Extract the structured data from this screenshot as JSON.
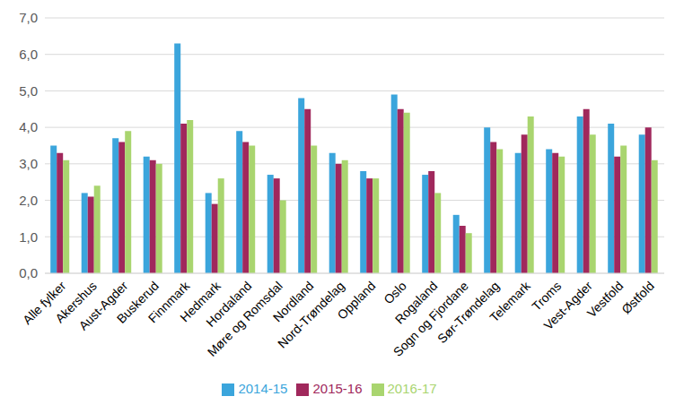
{
  "chart_data": {
    "type": "bar",
    "categories": [
      "Alle fylker",
      "Akershus",
      "Aust-Agder",
      "Buskerud",
      "Finnmark",
      "Hedmark",
      "Hordaland",
      "Møre og Romsdal",
      "Nordland",
      "Nord-Trøndelag",
      "Oppland",
      "Oslo",
      "Rogaland",
      "Sogn og Fjordane",
      "Sør-Trøndelag",
      "Telemark",
      "Troms",
      "Vest-Agder",
      "Vestfold",
      "Østfold"
    ],
    "series": [
      {
        "name": "2014-15",
        "color": "#3ba5dc",
        "values": [
          3.5,
          2.2,
          3.7,
          3.2,
          6.3,
          2.2,
          3.9,
          2.7,
          4.8,
          3.3,
          2.8,
          4.9,
          2.7,
          1.6,
          4.0,
          3.3,
          3.4,
          4.3,
          4.1,
          3.8
        ]
      },
      {
        "name": "2015-16",
        "color": "#a0285c",
        "values": [
          3.3,
          2.1,
          3.6,
          3.1,
          4.1,
          1.9,
          3.6,
          2.6,
          4.5,
          3.0,
          2.6,
          4.5,
          2.8,
          1.3,
          3.6,
          3.8,
          3.3,
          4.5,
          3.2,
          4.0
        ]
      },
      {
        "name": "2016-17",
        "color": "#a9d56f",
        "values": [
          3.1,
          2.4,
          3.9,
          3.0,
          4.2,
          2.6,
          3.5,
          2.0,
          3.5,
          3.1,
          2.6,
          4.4,
          2.2,
          1.1,
          3.4,
          4.3,
          3.2,
          3.8,
          3.5,
          3.1
        ]
      }
    ],
    "ylim": [
      0,
      7
    ],
    "yticks": [
      {
        "value": 0,
        "label": "0,0"
      },
      {
        "value": 1,
        "label": "1,0"
      },
      {
        "value": 2,
        "label": "2,0"
      },
      {
        "value": 3,
        "label": "3,0"
      },
      {
        "value": 4,
        "label": "4,0"
      },
      {
        "value": 5,
        "label": "5,0"
      },
      {
        "value": 6,
        "label": "6,0"
      },
      {
        "value": 7,
        "label": "7,0"
      }
    ],
    "grid": true,
    "legend": "bottom"
  }
}
